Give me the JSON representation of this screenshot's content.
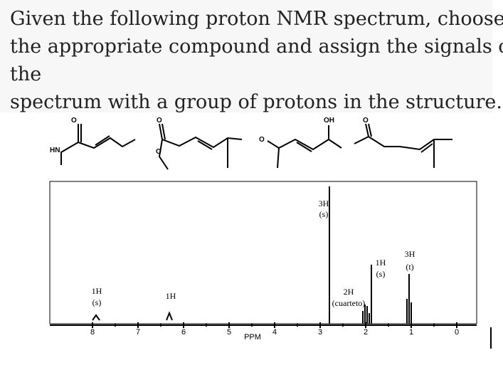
{
  "question": {
    "lines": [
      "Given the following proton NMR spectrum, choose",
      "the appropriate compound and assign the signals of",
      "the",
      "spectrum with a group of protons in the structure."
    ]
  },
  "structures": [
    {
      "labels": [
        "O",
        "HN"
      ]
    },
    {
      "labels": [
        "O",
        "O"
      ]
    },
    {
      "labels": [
        "O",
        "OH"
      ]
    },
    {
      "labels": [
        "O"
      ]
    }
  ],
  "spectrum": {
    "axis_label": "PPM",
    "ticks": [
      8,
      7,
      6,
      5,
      4,
      3,
      2,
      1,
      0
    ],
    "peaks": [
      {
        "integration": "1H",
        "multiplicity": "(s)"
      },
      {
        "integration": "1H"
      },
      {
        "integration": "3H",
        "multiplicity": "(s)"
      },
      {
        "integration": "2H",
        "multiplicity": "(cuarteto)"
      },
      {
        "integration": "1H",
        "multiplicity": "(s)"
      },
      {
        "integration": "3H",
        "multiplicity": "(t)"
      }
    ]
  }
}
